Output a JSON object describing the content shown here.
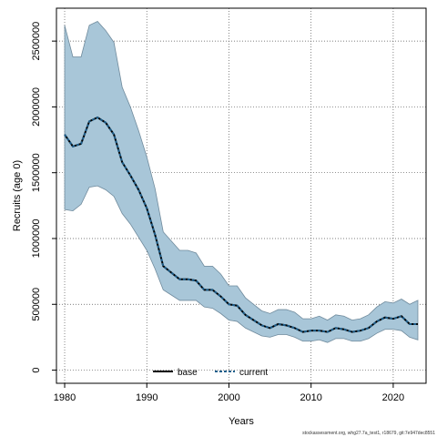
{
  "chart_data": {
    "type": "line",
    "xlabel": "Years",
    "ylabel": "Recruits (age 0)",
    "xlim": [
      1979,
      2024
    ],
    "ylim": [
      -100000,
      2750000
    ],
    "x_ticks": [
      1980,
      1990,
      2000,
      2010,
      2020
    ],
    "x_tick_labels": [
      "1980",
      "1990",
      "2000",
      "2010",
      "2020"
    ],
    "y_ticks": [
      0,
      500000,
      1000000,
      1500000,
      2000000,
      2500000
    ],
    "y_tick_labels": [
      "0",
      "500000",
      "1000000",
      "1500000",
      "2000000",
      "2500000"
    ],
    "grid": true,
    "legend_placement": "bottom-center",
    "x": [
      1980,
      1981,
      1982,
      1983,
      1984,
      1985,
      1986,
      1987,
      1988,
      1989,
      1990,
      1991,
      1992,
      1993,
      1994,
      1995,
      1996,
      1997,
      1998,
      1999,
      2000,
      2001,
      2002,
      2003,
      2004,
      2005,
      2006,
      2007,
      2008,
      2009,
      2010,
      2011,
      2012,
      2013,
      2014,
      2015,
      2016,
      2017,
      2018,
      2019,
      2020,
      2021,
      2022,
      2023
    ],
    "series": [
      {
        "name": "base",
        "color": "#000000",
        "style": "solid",
        "values": [
          1790000,
          1700000,
          1720000,
          1890000,
          1920000,
          1880000,
          1790000,
          1580000,
          1480000,
          1370000,
          1230000,
          1030000,
          790000,
          740000,
          690000,
          690000,
          680000,
          610000,
          610000,
          560000,
          500000,
          490000,
          420000,
          380000,
          340000,
          320000,
          350000,
          340000,
          320000,
          290000,
          300000,
          300000,
          290000,
          320000,
          310000,
          290000,
          300000,
          320000,
          370000,
          400000,
          390000,
          410000,
          350000,
          350000
        ]
      },
      {
        "name": "current",
        "color": "#1f5f8b",
        "style": "dashed",
        "values": [
          1790000,
          1700000,
          1720000,
          1890000,
          1920000,
          1880000,
          1790000,
          1580000,
          1480000,
          1370000,
          1230000,
          1030000,
          790000,
          740000,
          690000,
          690000,
          680000,
          610000,
          610000,
          560000,
          500000,
          490000,
          420000,
          380000,
          340000,
          320000,
          350000,
          340000,
          320000,
          290000,
          300000,
          300000,
          290000,
          320000,
          310000,
          290000,
          300000,
          320000,
          370000,
          400000,
          390000,
          410000,
          350000,
          350000
        ]
      }
    ],
    "band": {
      "color": "#a8c6d8",
      "edge_color": "#6f8a9c",
      "upper": [
        2620000,
        2380000,
        2380000,
        2620000,
        2650000,
        2580000,
        2490000,
        2150000,
        2000000,
        1820000,
        1620000,
        1380000,
        1050000,
        980000,
        910000,
        910000,
        890000,
        790000,
        790000,
        730000,
        640000,
        640000,
        550000,
        500000,
        450000,
        430000,
        460000,
        460000,
        440000,
        390000,
        390000,
        410000,
        380000,
        420000,
        410000,
        380000,
        390000,
        420000,
        480000,
        520000,
        510000,
        540000,
        500000,
        530000
      ],
      "lower": [
        1220000,
        1210000,
        1260000,
        1390000,
        1400000,
        1370000,
        1320000,
        1190000,
        1110000,
        1010000,
        910000,
        770000,
        610000,
        570000,
        530000,
        530000,
        530000,
        480000,
        470000,
        430000,
        380000,
        370000,
        320000,
        290000,
        260000,
        250000,
        270000,
        270000,
        250000,
        220000,
        220000,
        230000,
        210000,
        240000,
        240000,
        220000,
        220000,
        240000,
        280000,
        310000,
        310000,
        300000,
        250000,
        230000
      ]
    }
  },
  "footer_text": "stockassessment.org, whg27.7a_test1, r18679, git:7e947dec8551"
}
